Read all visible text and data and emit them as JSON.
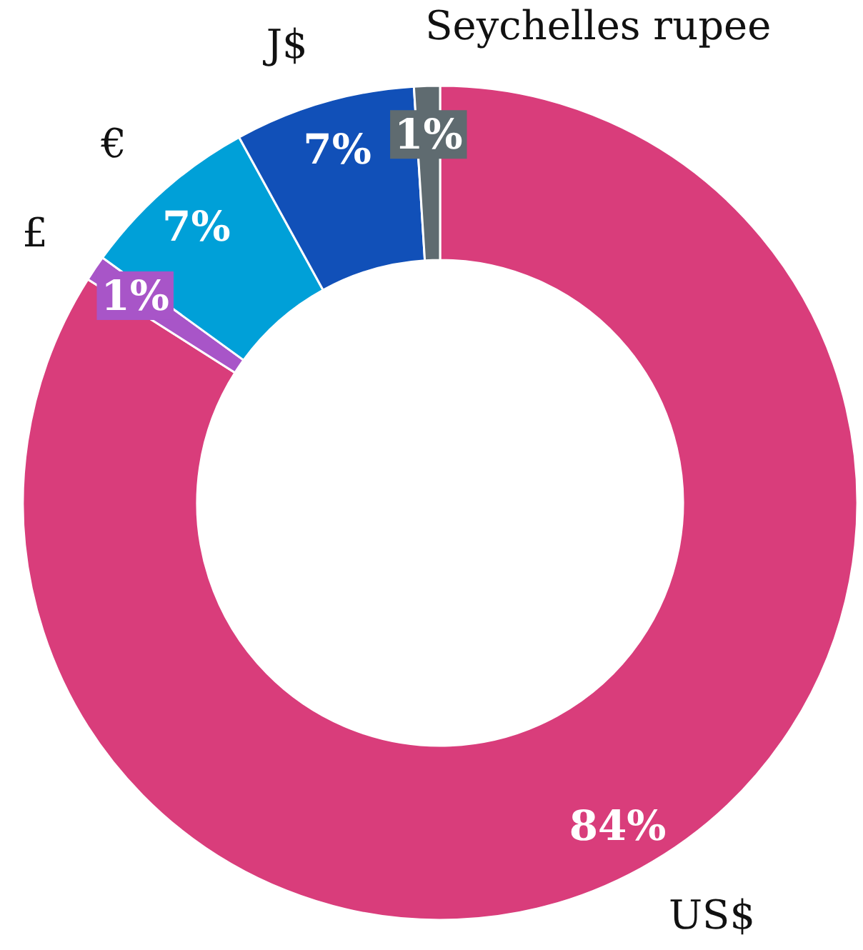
{
  "chart_data": {
    "type": "donut",
    "categories": [
      "US$",
      "£",
      "€",
      "J$",
      "Seychelles rupee"
    ],
    "values": [
      84,
      1,
      7,
      7,
      1
    ],
    "value_labels": [
      "84%",
      "1%",
      "7%",
      "7%",
      "1%"
    ],
    "colors": [
      "#d93d7b",
      "#a855c8",
      "#00a0d8",
      "#1150b8",
      "#5f6b70"
    ],
    "legend": false
  }
}
